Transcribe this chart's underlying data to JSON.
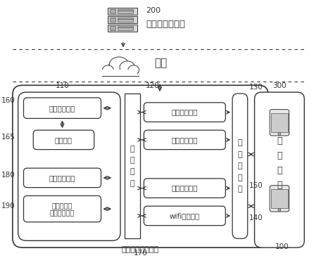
{
  "bg_color": "#ffffff",
  "server_label": "网络数据服务器",
  "server_num": "200",
  "network_label": "网络",
  "main_box_label": "移动设备充电装置",
  "main_box_num": "100",
  "module_110": "110",
  "module_120": "120",
  "module_130": "130",
  "module_160": "160",
  "module_165": "165",
  "module_170": "170",
  "module_180": "180",
  "module_190": "190",
  "module_140": "140",
  "module_150": "150",
  "module_300": "300",
  "unit_power": "电源管理单元",
  "unit_battery": "电池单元",
  "unit_data_if": "数据接口单元",
  "unit_expand_1": "可扩展输入",
  "unit_expand_2": "输出接口单元",
  "unit_master": "主\n控\n单\n元",
  "unit_network_access": "网络接入单元",
  "unit_software": "软件服务单元",
  "unit_storage": "数据存储单元",
  "unit_wifi": "wifi服务单元",
  "unit_charge": "充\n放\n电\n单\n元",
  "unit_mobile_1": "移",
  "unit_mobile_2": "动",
  "unit_mobile_3": "设",
  "unit_mobile_4": "备",
  "lc": "#333333"
}
